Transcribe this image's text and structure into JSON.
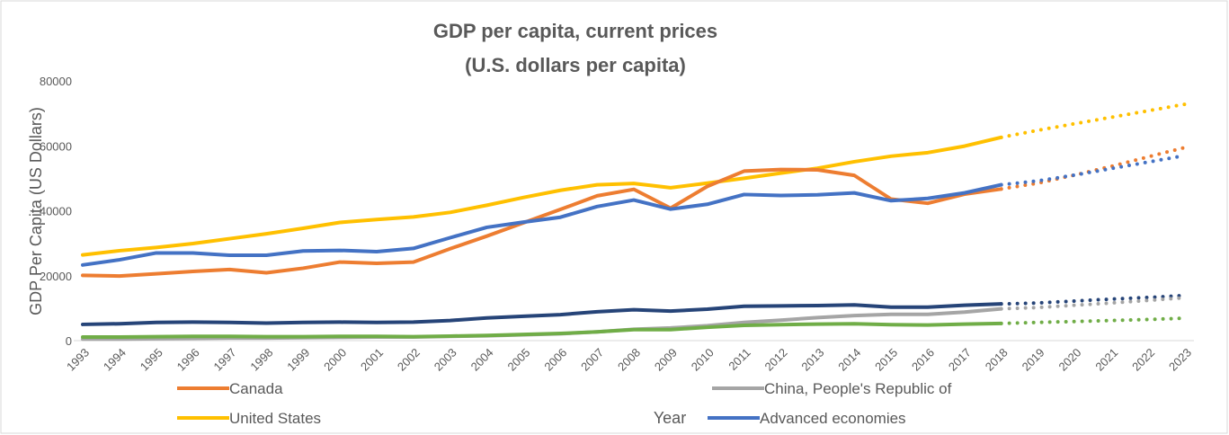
{
  "chart_data": {
    "type": "line",
    "title": "GDP per capita, current prices",
    "subtitle": "(U.S. dollars per capita)",
    "x_label": "Year",
    "y_label": "GDP Per Capita (US Dollars)",
    "categories": [
      "1993",
      "1994",
      "1995",
      "1996",
      "1997",
      "1998",
      "1999",
      "2000",
      "2001",
      "2002",
      "2003",
      "2004",
      "2005",
      "2006",
      "2007",
      "2008",
      "2009",
      "2010",
      "2011",
      "2012",
      "2013",
      "2014",
      "2015",
      "2016",
      "2017",
      "2018",
      "2019",
      "2020",
      "2021",
      "2022",
      "2023"
    ],
    "dotted_from": "2018",
    "ylim": [
      0,
      80000
    ],
    "yticks": [
      0,
      20000,
      40000,
      60000,
      80000
    ],
    "grid": false,
    "legend": "bottom",
    "series": [
      {
        "name": "United States",
        "color": "#ffc000",
        "values": [
          26400,
          27700,
          28700,
          29900,
          31400,
          32900,
          34600,
          36400,
          37300,
          38100,
          39500,
          41700,
          44100,
          46300,
          48000,
          48400,
          47100,
          48500,
          50000,
          51600,
          53100,
          55100,
          56800,
          57900,
          59900,
          62600,
          64800,
          66800,
          68800,
          70800,
          72800
        ]
      },
      {
        "name": "Canada",
        "color": "#ed7d31",
        "values": [
          20100,
          19900,
          20600,
          21300,
          21900,
          20900,
          22300,
          24200,
          23800,
          24200,
          28300,
          32200,
          36300,
          40400,
          44600,
          46600,
          40800,
          47500,
          52200,
          52700,
          52600,
          50900,
          43600,
          42300,
          45100,
          46700,
          48500,
          51000,
          53700,
          56600,
          59500
        ]
      },
      {
        "name": "Advanced economies",
        "color": "#4472c4",
        "values": [
          23300,
          24900,
          27000,
          27000,
          26300,
          26300,
          27600,
          27800,
          27400,
          28400,
          31700,
          34900,
          36500,
          38000,
          41300,
          43300,
          40500,
          42000,
          45000,
          44700,
          44900,
          45500,
          43100,
          43800,
          45500,
          48000,
          49200,
          51000,
          53000,
          55000,
          57000
        ]
      },
      {
        "color": "#264478",
        "values": [
          5000,
          5200,
          5600,
          5700,
          5600,
          5400,
          5600,
          5700,
          5600,
          5700,
          6200,
          7000,
          7500,
          8000,
          8900,
          9500,
          9100,
          9700,
          10600,
          10700,
          10800,
          11000,
          10300,
          10300,
          10900,
          11300,
          11600,
          12200,
          12800,
          13300,
          13900
        ]
      },
      {
        "name": "China, People's Republic of",
        "color": "#a5a5a5",
        "values": [
          500,
          500,
          600,
          700,
          800,
          800,
          900,
          1000,
          1100,
          1100,
          1300,
          1500,
          1800,
          2100,
          2700,
          3500,
          3900,
          4600,
          5600,
          6300,
          7100,
          7700,
          8100,
          8100,
          8800,
          9800,
          10200,
          10900,
          11600,
          12400,
          13200
        ]
      },
      {
        "color": "#70ad47",
        "values": [
          1100,
          1100,
          1200,
          1300,
          1300,
          1200,
          1200,
          1300,
          1300,
          1200,
          1400,
          1600,
          1900,
          2200,
          2700,
          3400,
          3400,
          4100,
          4700,
          4900,
          5100,
          5200,
          4900,
          4800,
          5100,
          5300,
          5600,
          5900,
          6200,
          6500,
          6900
        ]
      }
    ]
  }
}
